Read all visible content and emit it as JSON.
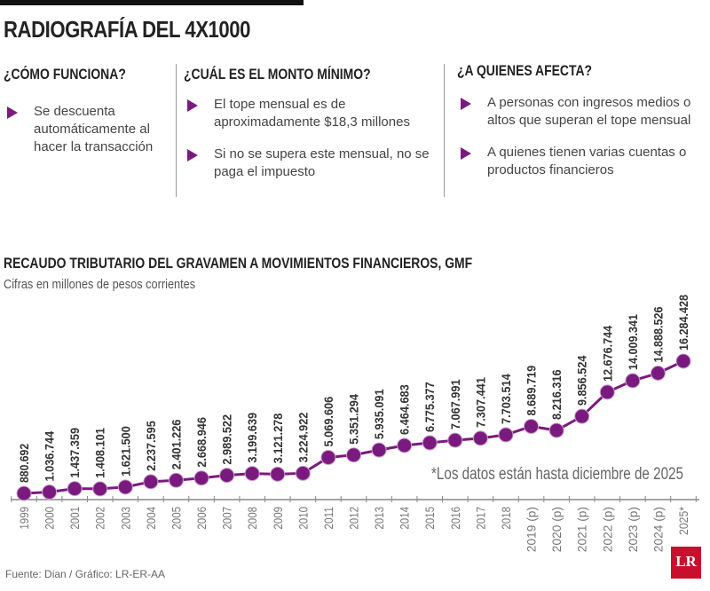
{
  "title": "RADIOGRAFÍA DEL 4X1000",
  "columns": [
    {
      "heading": "¿CÓMO FUNCIONA?",
      "items": [
        "Se descuenta automáticamente al hacer la transacción"
      ]
    },
    {
      "heading": "¿CUÁL ES EL MONTO MÍNIMO?",
      "items": [
        "El tope mensual es de aproximadamente $18,3 millones",
        "Si no se supera este mensual, no se paga el impuesto"
      ]
    },
    {
      "heading": "¿A QUIENES AFECTA?",
      "items": [
        "A personas con ingresos medios o altos que superan el tope mensual",
        "A quienes tienen varias cuentas o productos financieros"
      ]
    }
  ],
  "chart_data": {
    "type": "line",
    "title": "RECAUDO TRIBUTARIO DEL GRAVAMEN A MOVIMIENTOS FINANCIEROS, GMF",
    "subtitle": "Cifras en millones de pesos corrientes",
    "categories": [
      "1999",
      "2000",
      "2001",
      "2002",
      "2003",
      "2004",
      "2005",
      "2006",
      "2007",
      "2008",
      "2009",
      "2010",
      "2011",
      "2012",
      "2013",
      "2014",
      "2015",
      "2016",
      "2017",
      "2018",
      "2019 (p)",
      "2020 (p)",
      "2021 (p)",
      "2022 (p)",
      "2023 (p)",
      "2024 (p)",
      "2025*"
    ],
    "values": [
      880692,
      1036744,
      1437359,
      1408101,
      1621500,
      2237595,
      2401226,
      2668946,
      2989522,
      3199639,
      3121278,
      3224922,
      5069606,
      5351294,
      5935091,
      6464683,
      6775377,
      7067991,
      7307441,
      7703514,
      8689719,
      8216316,
      9856524,
      12676744,
      14009341,
      14888526,
      16284428
    ],
    "labels": [
      "880.692",
      "1.036.744",
      "1.437.359",
      "1.408.101",
      "1.621.500",
      "2.237.595",
      "2.401.226",
      "2.668.946",
      "2.989.522",
      "3.199.639",
      "3.121.278",
      "3.224.922",
      "5.069.606",
      "5.351.294",
      "5.935.091",
      "6.464.683",
      "6.775.377",
      "7.067.991",
      "7.307.441",
      "7.703.514",
      "8.689.719",
      "8.216.316",
      "9.856.524",
      "12.676.744",
      "14.009.341",
      "14.888.526",
      "16.284.428"
    ],
    "color": "#7a1a7e",
    "note": "*Los datos están hasta diciembre de 2025"
  },
  "footer": "Fuente: Dian / Gráfico: LR-ER-AA",
  "logo": "LR"
}
